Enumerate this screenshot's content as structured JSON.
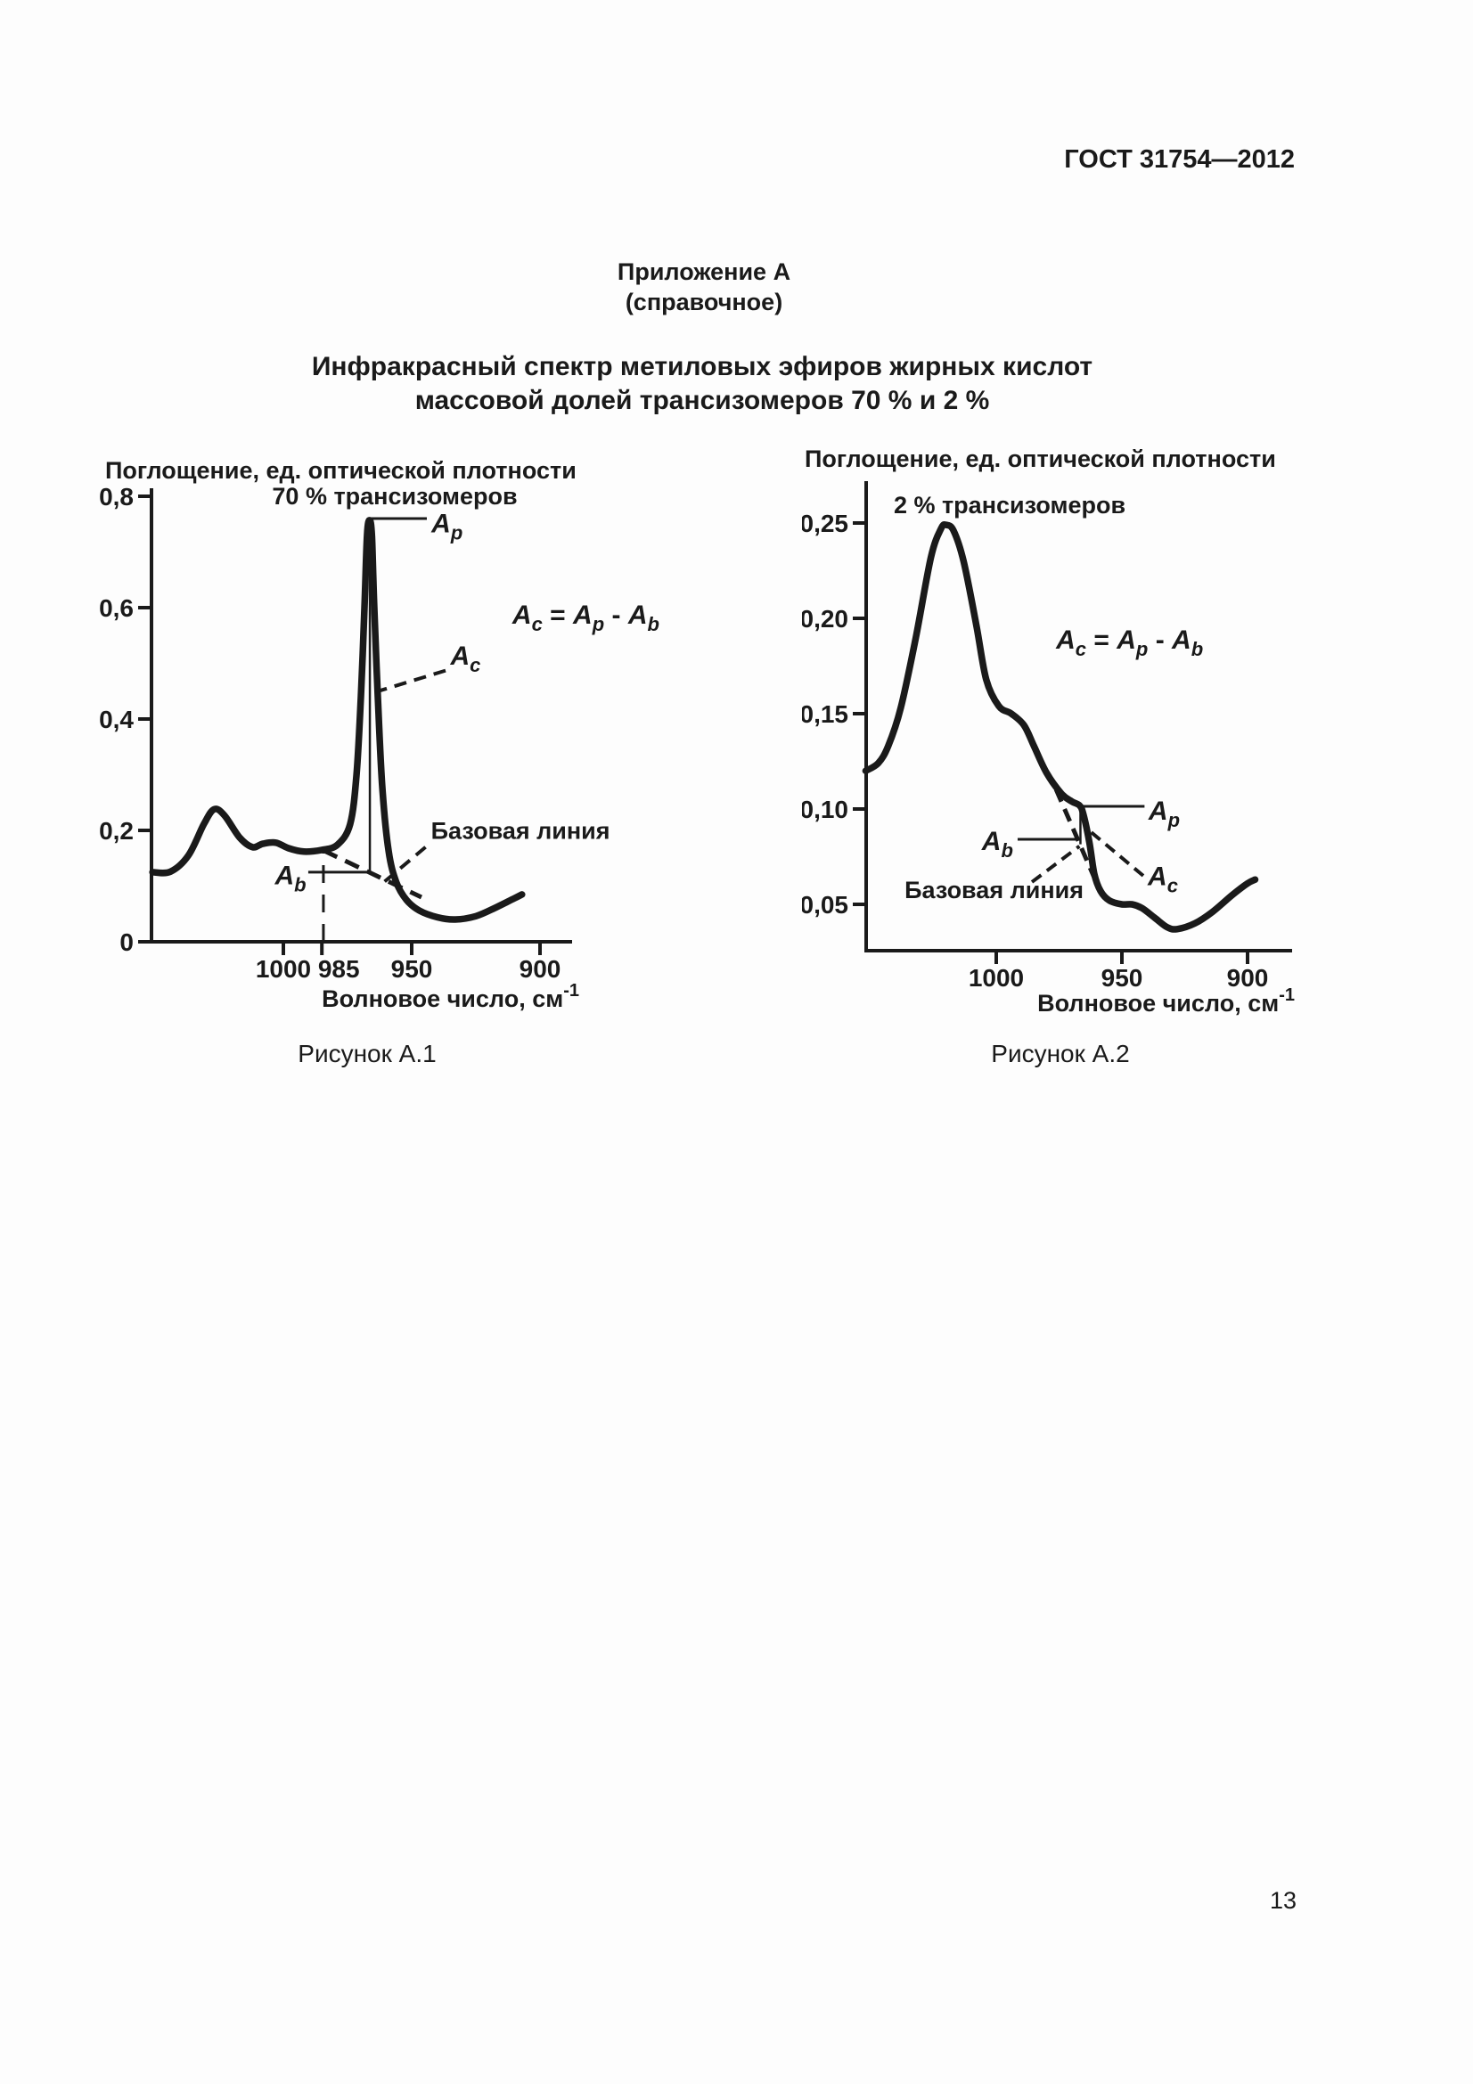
{
  "page": {
    "header_right": "ГОСТ 31754—2012",
    "appendix_title": "Приложение А",
    "appendix_subtitle": "(справочное)",
    "main_title_line1": "Инфракрасный спектр метиловых эфиров жирных кислот",
    "main_title_line2": "массовой долей трансизомеров 70 % и 2 %",
    "page_number": "13"
  },
  "colors": {
    "ink": "#1a1a1a",
    "paper": "#fdfdfd"
  },
  "chart_data": [
    {
      "id": "figure-a1",
      "type": "line",
      "title": "70 % трансизомеров",
      "caption": "Рисунок А.1",
      "xlabel": "Волновое число, см",
      "xlabel_sup": "-1",
      "ylabel": "Поглощение, ед. оптической плотности",
      "x_reversed": true,
      "xlim": [
        1051,
        888
      ],
      "ylim": [
        0,
        0.82
      ],
      "grid": false,
      "xticks": [
        {
          "v": 1000,
          "label": "1000"
        },
        {
          "v": 985,
          "label": "985",
          "dx": 19
        },
        {
          "v": 950,
          "label": "950"
        },
        {
          "v": 900,
          "label": "900"
        }
      ],
      "yticks": [
        {
          "v": 0,
          "label": "0"
        },
        {
          "v": 0.2,
          "label": "0,2"
        },
        {
          "v": 0.4,
          "label": "0,4"
        },
        {
          "v": 0.6,
          "label": "0,6"
        },
        {
          "v": 0.8,
          "label": "0,8"
        }
      ],
      "curve": [
        [
          1051,
          0.125
        ],
        [
          1044,
          0.126
        ],
        [
          1037,
          0.155
        ],
        [
          1031,
          0.211
        ],
        [
          1027,
          0.238
        ],
        [
          1023,
          0.227
        ],
        [
          1017,
          0.187
        ],
        [
          1012,
          0.17
        ],
        [
          1008,
          0.176
        ],
        [
          1003,
          0.178
        ],
        [
          998,
          0.168
        ],
        [
          992,
          0.162
        ],
        [
          985,
          0.165
        ],
        [
          979,
          0.174
        ],
        [
          974,
          0.211
        ],
        [
          971.5,
          0.3
        ],
        [
          969.8,
          0.44
        ],
        [
          968.4,
          0.6
        ],
        [
          967.4,
          0.73
        ],
        [
          966.4,
          0.757
        ],
        [
          965.5,
          0.728
        ],
        [
          964.6,
          0.6
        ],
        [
          963.2,
          0.44
        ],
        [
          961.5,
          0.28
        ],
        [
          959,
          0.163
        ],
        [
          956,
          0.107
        ],
        [
          952,
          0.075
        ],
        [
          947,
          0.056
        ],
        [
          940,
          0.044
        ],
        [
          933,
          0.04
        ],
        [
          925,
          0.046
        ],
        [
          917,
          0.062
        ],
        [
          910,
          0.078
        ],
        [
          907,
          0.085
        ]
      ],
      "annotations": [
        {
          "n": "peak-top-line",
          "k": "solid",
          "w": 3,
          "p": [
            966.3,
            0.76,
            944.1,
            0.76
          ]
        },
        {
          "n": "ap-label",
          "k": "label",
          "x": 942.3,
          "y": 0.735,
          "a": "start",
          "parts": [
            {
              "t": "A",
              "i": 1
            },
            {
              "t": "p",
              "s": 1
            }
          ]
        },
        {
          "n": "peak-drop-line",
          "k": "solid",
          "w": 2.5,
          "p": [
            966.3,
            0.757,
            966.3,
            0.125
          ]
        },
        {
          "n": "ab-line",
          "k": "solid",
          "w": 3,
          "p": [
            990.3,
            0.125,
            966.3,
            0.125
          ]
        },
        {
          "n": "ab-label",
          "k": "label",
          "x": 991.1,
          "y": 0.103,
          "a": "end",
          "parts": [
            {
              "t": "A",
              "i": 1
            },
            {
              "t": "b",
              "s": 1
            }
          ]
        },
        {
          "n": "wavenumber-985-dash",
          "k": "dash",
          "w": 3,
          "d": "20,13",
          "p": [
            984.4,
            0,
            984.4,
            0.164
          ]
        },
        {
          "n": "baseline",
          "k": "dash",
          "w": 5,
          "d": "17,10",
          "p": [
            984.4,
            0.164,
            946.2,
            0.08
          ]
        },
        {
          "n": "baseline-pointer",
          "k": "dash",
          "w": 4,
          "d": "14,9",
          "p": [
            944.6,
            0.17,
            960.6,
            0.108
          ]
        },
        {
          "n": "baseline-label",
          "k": "label",
          "x": 942.5,
          "y": 0.185,
          "a": "start",
          "fs": 27,
          "parts": [
            {
              "t": "Базовая линия"
            }
          ]
        },
        {
          "n": "ac-pointer",
          "k": "dash",
          "w": 4,
          "d": "14,9",
          "p": [
            936.8,
            0.487,
            965.9,
            0.446
          ]
        },
        {
          "n": "ac-label",
          "k": "label",
          "x": 934.9,
          "y": 0.498,
          "a": "start",
          "parts": [
            {
              "t": "A",
              "i": 1
            },
            {
              "t": "c",
              "s": 1
            }
          ]
        },
        {
          "n": "series-title",
          "k": "label",
          "x": 956.6,
          "y": 0.786,
          "a": "middle",
          "fs": 27,
          "parts": [
            {
              "t": "70 % трансизомеров"
            }
          ]
        },
        {
          "n": "formula",
          "k": "label",
          "x": 910.8,
          "y": 0.571,
          "a": "start",
          "fs": 30,
          "parts": [
            {
              "t": "A",
              "i": 1
            },
            {
              "t": "c",
              "s": 1
            },
            {
              "t": " = "
            },
            {
              "t": "A",
              "i": 1
            },
            {
              "t": "p",
              "s": 1
            },
            {
              "t": " - "
            },
            {
              "t": "A",
              "i": 1
            },
            {
              "t": "b",
              "s": 1
            }
          ]
        }
      ]
    },
    {
      "id": "figure-a2",
      "type": "line",
      "title": "2 % трансизомеров",
      "caption": "Рисунок А.2",
      "xlabel": "Волновое число, см",
      "xlabel_sup": "-1",
      "ylabel": "Поглощение, ед. оптической плотности",
      "x_reversed": true,
      "xlim": [
        1053,
        879
      ],
      "ylim": [
        0.025,
        0.272
      ],
      "grid": false,
      "xticks": [
        {
          "v": 1000,
          "label": "1000"
        },
        {
          "v": 950,
          "label": "950"
        },
        {
          "v": 900,
          "label": "900"
        }
      ],
      "yticks": [
        {
          "v": 0.05,
          "label": "0,05"
        },
        {
          "v": 0.1,
          "label": "0,10"
        },
        {
          "v": 0.15,
          "label": "0,15"
        },
        {
          "v": 0.2,
          "label": "0,20"
        },
        {
          "v": 0.25,
          "label": "0,25"
        }
      ],
      "curve": [
        [
          1052,
          0.12
        ],
        [
          1047,
          0.124
        ],
        [
          1043,
          0.133
        ],
        [
          1038,
          0.153
        ],
        [
          1032,
          0.19
        ],
        [
          1026,
          0.232
        ],
        [
          1022,
          0.247
        ],
        [
          1020,
          0.249
        ],
        [
          1017,
          0.246
        ],
        [
          1013,
          0.23
        ],
        [
          1008,
          0.197
        ],
        [
          1004,
          0.168
        ],
        [
          999,
          0.154
        ],
        [
          994,
          0.15
        ],
        [
          989,
          0.144
        ],
        [
          985,
          0.133
        ],
        [
          980,
          0.119
        ],
        [
          974,
          0.108
        ],
        [
          970,
          0.104
        ],
        [
          967,
          0.102
        ],
        [
          965.5,
          0.098
        ],
        [
          963,
          0.083
        ],
        [
          961,
          0.066
        ],
        [
          958.5,
          0.057
        ],
        [
          955,
          0.052
        ],
        [
          950,
          0.05
        ],
        [
          946,
          0.05
        ],
        [
          942,
          0.048
        ],
        [
          937,
          0.043
        ],
        [
          932,
          0.038
        ],
        [
          928,
          0.037
        ],
        [
          921,
          0.04
        ],
        [
          914,
          0.046
        ],
        [
          906,
          0.055
        ],
        [
          900,
          0.061
        ],
        [
          897,
          0.063
        ]
      ],
      "annotations": [
        {
          "n": "peak-top-line",
          "k": "solid",
          "w": 3,
          "p": [
            966.7,
            0.1014,
            941,
            0.1014
          ]
        },
        {
          "n": "ap-label",
          "k": "label",
          "x": 939.4,
          "y": 0.0944,
          "a": "start",
          "parts": [
            {
              "t": "A",
              "i": 1
            },
            {
              "t": "p",
              "s": 1
            }
          ]
        },
        {
          "n": "peak-drop-line",
          "k": "solid",
          "w": 2.5,
          "p": [
            966.5,
            0.101,
            966.5,
            0.0815
          ]
        },
        {
          "n": "ab-line",
          "k": "solid",
          "w": 3,
          "p": [
            991.5,
            0.0841,
            966.7,
            0.0841
          ]
        },
        {
          "n": "ab-label",
          "k": "label",
          "x": 993.3,
          "y": 0.0785,
          "a": "end",
          "parts": [
            {
              "t": "A",
              "i": 1
            },
            {
              "t": "b",
              "s": 1
            }
          ]
        },
        {
          "n": "baseline",
          "k": "dash",
          "w": 5,
          "d": "15,9",
          "p": [
            976.2,
            0.1103,
            961,
            0.064
          ]
        },
        {
          "n": "baseline-pointer",
          "k": "dash",
          "w": 4,
          "d": "13,8",
          "p": [
            985.8,
            0.0617,
            966.9,
            0.0805
          ]
        },
        {
          "n": "baseline-label",
          "k": "label",
          "x": 1036.5,
          "y": 0.0533,
          "a": "start",
          "fs": 27,
          "parts": [
            {
              "t": "Базовая линия"
            }
          ]
        },
        {
          "n": "ac-pointer",
          "k": "dash",
          "w": 4,
          "d": "13,8",
          "p": [
            941.5,
            0.065,
            964.2,
            0.09
          ]
        },
        {
          "n": "ac-label",
          "k": "label",
          "x": 939.7,
          "y": 0.06,
          "a": "start",
          "parts": [
            {
              "t": "A",
              "i": 1
            },
            {
              "t": "c",
              "s": 1
            }
          ]
        },
        {
          "n": "series-title",
          "k": "label",
          "x": 1040.8,
          "y": 0.2551,
          "a": "start",
          "fs": 27,
          "parts": [
            {
              "t": "2 % трансизомеров"
            }
          ]
        },
        {
          "n": "formula",
          "k": "label",
          "x": 976.2,
          "y": 0.1841,
          "a": "start",
          "fs": 30,
          "parts": [
            {
              "t": "A",
              "i": 1
            },
            {
              "t": "c",
              "s": 1
            },
            {
              "t": " = "
            },
            {
              "t": "A",
              "i": 1
            },
            {
              "t": "p",
              "s": 1
            },
            {
              "t": " - "
            },
            {
              "t": "A",
              "i": 1
            },
            {
              "t": "b",
              "s": 1
            }
          ]
        }
      ]
    }
  ]
}
